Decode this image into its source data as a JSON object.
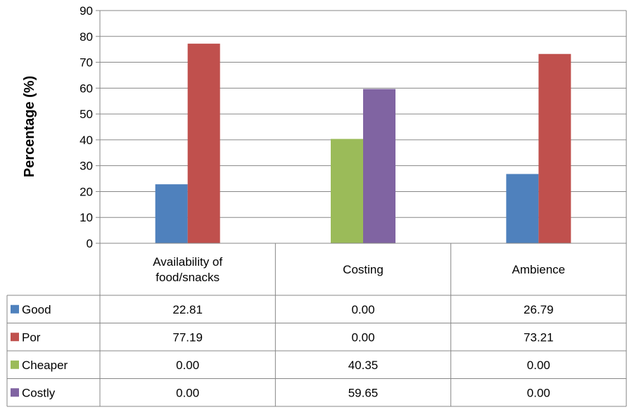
{
  "chart_data": {
    "type": "bar",
    "title": "",
    "xlabel": "",
    "ylabel": "Percentage (%)",
    "ylim": [
      0,
      90
    ],
    "yticks": [
      0,
      10,
      20,
      30,
      40,
      50,
      60,
      70,
      80,
      90
    ],
    "grid": true,
    "legend": "data-table",
    "categories": [
      [
        "Availability of",
        "food/snacks"
      ],
      [
        "Costing"
      ],
      [
        "Ambience"
      ]
    ],
    "series": [
      {
        "name": "Good",
        "color": "#4f81bd",
        "values": [
          22.81,
          0.0,
          26.79
        ],
        "labels": [
          "22.81",
          "0.00",
          "26.79"
        ]
      },
      {
        "name": "Por",
        "color": "#c0504d",
        "values": [
          77.19,
          0.0,
          73.21
        ],
        "labels": [
          "77.19",
          "0.00",
          "73.21"
        ]
      },
      {
        "name": "Cheaper",
        "color": "#9bbb59",
        "values": [
          0.0,
          40.35,
          0.0
        ],
        "labels": [
          "0.00",
          "40.35",
          "0.00"
        ]
      },
      {
        "name": "Costly",
        "color": "#8064a2",
        "values": [
          0.0,
          59.65,
          0.0
        ],
        "labels": [
          "0.00",
          "59.65",
          "0.00"
        ]
      }
    ]
  }
}
